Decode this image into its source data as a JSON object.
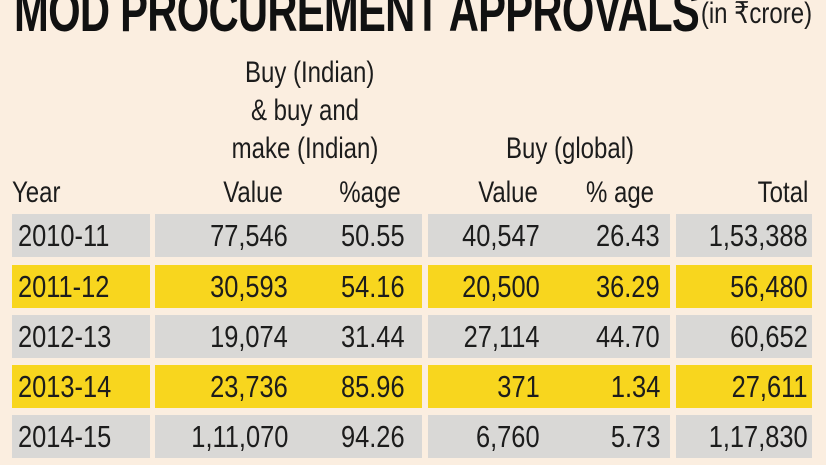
{
  "title": "MOD PROCUREMENT APPROVALS",
  "unit": "(in ₹crore)",
  "colors": {
    "background": "#fbeee0",
    "row_gray": "#d9d8d6",
    "row_yellow": "#f8d61e"
  },
  "chart_data": {
    "type": "table",
    "title": "MOD PROCUREMENT APPROVALS",
    "unit": "(in ₹crore)",
    "group_headers": {
      "indian": [
        "Buy (Indian)",
        "& buy and",
        "make (Indian)"
      ],
      "global": "Buy (global)"
    },
    "columns": [
      "Year",
      "Value",
      "%age",
      "Value",
      "% age",
      "Total"
    ],
    "rows": [
      [
        "2010-11",
        "77,546",
        "50.55",
        "40,547",
        "26.43",
        "1,53,388"
      ],
      [
        "2011-12",
        "30,593",
        "54.16",
        "20,500",
        "36.29",
        "56,480"
      ],
      [
        "2012-13",
        "19,074",
        "31.44",
        "27,114",
        "44.70",
        "60,652"
      ],
      [
        "2013-14",
        "23,736",
        "85.96",
        "371",
        "1.34",
        "27,611"
      ],
      [
        "2014-15",
        "1,11,070",
        "94.26",
        "6,760",
        "5.73",
        "1,17,830"
      ]
    ]
  }
}
